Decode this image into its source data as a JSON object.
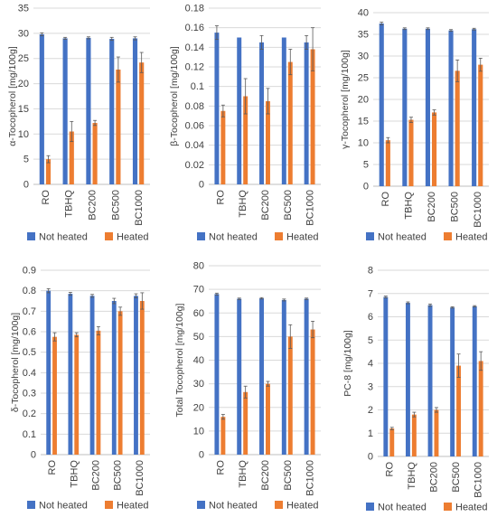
{
  "figure": {
    "legend_labels": [
      "Not heated",
      "Heated"
    ],
    "colors": {
      "not_heated": "#4472C4",
      "heated": "#ED7D31",
      "grid": "#d9d9d9",
      "axis": "#bfbfbf",
      "error": "#595959"
    }
  },
  "chart_data": [
    {
      "type": "bar",
      "ylabel": "α-Tocopherol [mg/100g]",
      "categories": [
        "RO",
        "TBHQ",
        "BC200",
        "BC500",
        "BC1000"
      ],
      "ylim": [
        0,
        35
      ],
      "yticks": [
        0,
        5,
        10,
        15,
        20,
        25,
        30,
        35
      ],
      "ytick_labels": [
        "0",
        "5",
        "10",
        "15",
        "20",
        "25",
        "30",
        "35"
      ],
      "grid": true,
      "legend_position": "bottom",
      "series": [
        {
          "name": "Not heated",
          "values": [
            29.8,
            29.0,
            29.1,
            28.9,
            29.0
          ],
          "errors": [
            0.3,
            0.2,
            0.2,
            0.3,
            0.3
          ]
        },
        {
          "name": "Heated",
          "values": [
            5.0,
            10.5,
            12.2,
            22.8,
            24.2
          ],
          "errors": [
            0.7,
            2.0,
            0.5,
            2.5,
            2.0
          ]
        }
      ]
    },
    {
      "type": "bar",
      "ylabel": "β-Tocopherol [mg/100g]",
      "categories": [
        "RO",
        "TBHQ",
        "BC200",
        "BC500",
        "BC1000"
      ],
      "ylim": [
        0,
        0.18
      ],
      "yticks": [
        0,
        0.02,
        0.04,
        0.06,
        0.08,
        0.1,
        0.12,
        0.14,
        0.16,
        0.18
      ],
      "ytick_labels": [
        "0",
        "0.02",
        "0.04",
        "0.06",
        "0.08",
        "0.1",
        "0.12",
        "0.14",
        "0.16",
        "0.18"
      ],
      "grid": true,
      "legend_position": "bottom",
      "series": [
        {
          "name": "Not heated",
          "values": [
            0.155,
            0.15,
            0.145,
            0.15,
            0.145
          ],
          "errors": [
            0.007,
            0.0,
            0.007,
            0.0,
            0.007
          ]
        },
        {
          "name": "Heated",
          "values": [
            0.075,
            0.09,
            0.085,
            0.125,
            0.138
          ],
          "errors": [
            0.006,
            0.018,
            0.013,
            0.013,
            0.022
          ]
        }
      ]
    },
    {
      "type": "bar",
      "ylabel": "γ-Tocopherol [mg/100g]",
      "categories": [
        "RO",
        "TBHQ",
        "BC200",
        "BC500",
        "BC1000"
      ],
      "ylim": [
        0,
        40
      ],
      "yticks": [
        0,
        5,
        10,
        15,
        20,
        25,
        30,
        35,
        40
      ],
      "ytick_labels": [
        "0",
        "5",
        "10",
        "15",
        "20",
        "25",
        "30",
        "35",
        "40"
      ],
      "grid": true,
      "legend_position": "bottom",
      "series": [
        {
          "name": "Not heated",
          "values": [
            37.5,
            36.3,
            36.3,
            35.9,
            36.2
          ],
          "errors": [
            0.3,
            0.2,
            0.2,
            0.2,
            0.2
          ]
        },
        {
          "name": "Heated",
          "values": [
            10.6,
            15.3,
            17.0,
            26.6,
            28.0
          ],
          "errors": [
            0.6,
            0.6,
            0.6,
            2.5,
            1.5
          ]
        }
      ]
    },
    {
      "type": "bar",
      "ylabel": "δ-Tocopherol [mg/100g]",
      "categories": [
        "RO",
        "TBHQ",
        "BC200",
        "BC500",
        "BC1000"
      ],
      "ylim": [
        0,
        0.9
      ],
      "yticks": [
        0,
        0.1,
        0.2,
        0.3,
        0.4,
        0.5,
        0.6,
        0.7,
        0.8,
        0.9
      ],
      "ytick_labels": [
        "0",
        "0.1",
        "0.2",
        "0.3",
        "0.4",
        "0.5",
        "0.6",
        "0.7",
        "0.8",
        "0.9"
      ],
      "grid": true,
      "legend_position": "bottom",
      "series": [
        {
          "name": "Not heated",
          "values": [
            0.8,
            0.785,
            0.775,
            0.75,
            0.775
          ],
          "errors": [
            0.01,
            0.007,
            0.007,
            0.013,
            0.01
          ]
        },
        {
          "name": "Heated",
          "values": [
            0.575,
            0.585,
            0.605,
            0.7,
            0.75
          ],
          "errors": [
            0.02,
            0.01,
            0.02,
            0.02,
            0.04
          ]
        }
      ]
    },
    {
      "type": "bar",
      "ylabel": "Total Tocopherol [mg/100g]",
      "categories": [
        "RO",
        "TBHQ",
        "BC200",
        "BC500",
        "BC1000"
      ],
      "ylim": [
        0,
        80
      ],
      "yticks": [
        0,
        10,
        20,
        30,
        40,
        50,
        60,
        70,
        80
      ],
      "ytick_labels": [
        "0",
        "10",
        "20",
        "30",
        "40",
        "50",
        "60",
        "70",
        "80"
      ],
      "grid": true,
      "legend_position": "bottom",
      "series": [
        {
          "name": "Not heated",
          "values": [
            68.0,
            66.0,
            66.2,
            65.5,
            66.0
          ],
          "errors": [
            0.4,
            0.3,
            0.3,
            0.4,
            0.3
          ]
        },
        {
          "name": "Heated",
          "values": [
            16.0,
            26.5,
            30.0,
            50.0,
            53.0
          ],
          "errors": [
            1.0,
            2.5,
            1.0,
            5.0,
            3.5
          ]
        }
      ]
    },
    {
      "type": "bar",
      "ylabel": "PC-8 [mg/100g]",
      "categories": [
        "RO",
        "TBHQ",
        "BC200",
        "BC500",
        "BC1000"
      ],
      "ylim": [
        0,
        8
      ],
      "yticks": [
        0,
        1,
        2,
        3,
        4,
        5,
        6,
        7,
        8
      ],
      "ytick_labels": [
        "0",
        "1",
        "2",
        "3",
        "4",
        "5",
        "6",
        "7",
        "8"
      ],
      "grid": true,
      "legend_position": "bottom",
      "series": [
        {
          "name": "Not heated",
          "values": [
            6.85,
            6.6,
            6.5,
            6.4,
            6.45
          ],
          "errors": [
            0.04,
            0.04,
            0.05,
            0.03,
            0.03
          ]
        },
        {
          "name": "Heated",
          "values": [
            1.2,
            1.8,
            2.0,
            3.9,
            4.1
          ],
          "errors": [
            0.05,
            0.1,
            0.1,
            0.5,
            0.4
          ]
        }
      ]
    }
  ]
}
